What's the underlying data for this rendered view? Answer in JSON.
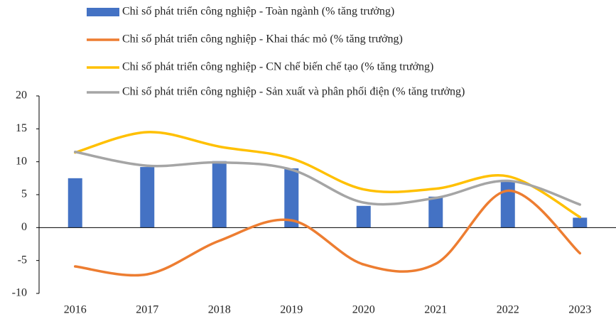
{
  "chart_data": {
    "type": "bar-line",
    "categories": [
      "2016",
      "2017",
      "2018",
      "2019",
      "2020",
      "2021",
      "2022",
      "2023"
    ],
    "series": [
      {
        "name": "Chỉ số phát triển công nghiệp - Toàn ngành (% tăng trưởng)",
        "type": "bar",
        "color": "#4472c4",
        "values": [
          7.5,
          9.2,
          10.1,
          9.0,
          3.3,
          4.7,
          7.1,
          1.5
        ]
      },
      {
        "name": "Chỉ số phát triển công nghiệp - Khai thác mỏ (% tăng trưởng)",
        "type": "line",
        "color": "#ed7d31",
        "values": [
          -5.9,
          -7.1,
          -2.0,
          1.1,
          -5.6,
          -5.5,
          5.6,
          -3.9
        ]
      },
      {
        "name": "Chỉ số phát triển công nghiệp - CN chế biến chế tạo (% tăng trưởng)",
        "type": "line",
        "color": "#ffc000",
        "values": [
          11.4,
          14.5,
          12.3,
          10.5,
          5.8,
          5.9,
          7.8,
          1.6
        ]
      },
      {
        "name": "Chỉ số phát triển công nghiệp - Sản xuất và phân phối điện (% tăng trưởng)",
        "type": "line",
        "color": "#a5a5a5",
        "values": [
          11.5,
          9.4,
          9.9,
          8.8,
          3.8,
          4.5,
          7.1,
          3.5
        ]
      }
    ],
    "ylim": [
      -10,
      20
    ],
    "yticks": [
      -10,
      -5,
      0,
      5,
      10,
      15,
      20
    ],
    "legend": "top",
    "smooth": true
  }
}
